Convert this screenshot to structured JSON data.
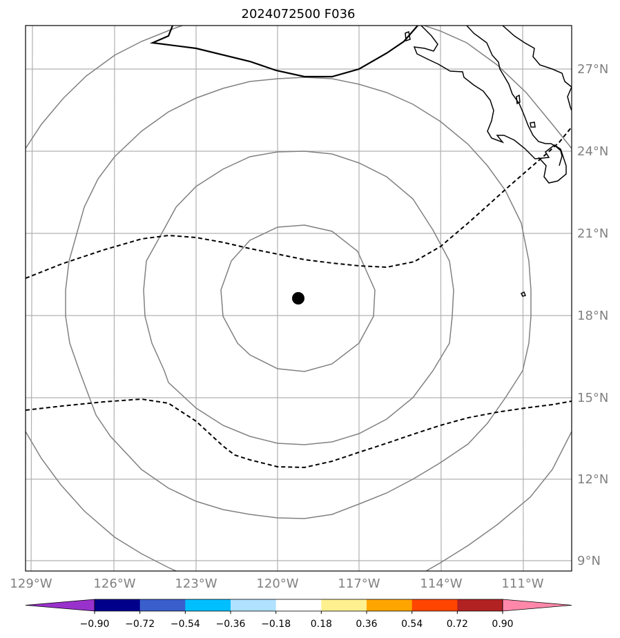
{
  "title": "2024072500 F036",
  "map": {
    "lat_labels": [
      "27°N",
      "24°N",
      "21°N",
      "18°N",
      "15°N",
      "12°N",
      "9°N"
    ],
    "lon_labels": [
      "129°W",
      "126°W",
      "123°W",
      "120°W",
      "117°W",
      "114°W",
      "111°W"
    ],
    "storm_center": {
      "lon": -119.2,
      "lat": 18.6
    },
    "range_rings": [
      "inner",
      "second",
      "third",
      "outer"
    ],
    "frame_color": "#000000",
    "grid_color": "#b0b0b0",
    "ring_color": "#808080"
  },
  "colorbar": {
    "tick_labels": [
      "−0.90",
      "−0.72",
      "−0.54",
      "−0.36",
      "−0.18",
      "0.18",
      "0.36",
      "0.54",
      "0.72",
      "0.90"
    ],
    "colors": [
      "#9932cc",
      "#00008b",
      "#3a5fcd",
      "#00bfff",
      "#b0e2ff",
      "#ffffff",
      "#fff08f",
      "#ffa500",
      "#ff4500",
      "#b22222",
      "#ff88aa"
    ]
  }
}
